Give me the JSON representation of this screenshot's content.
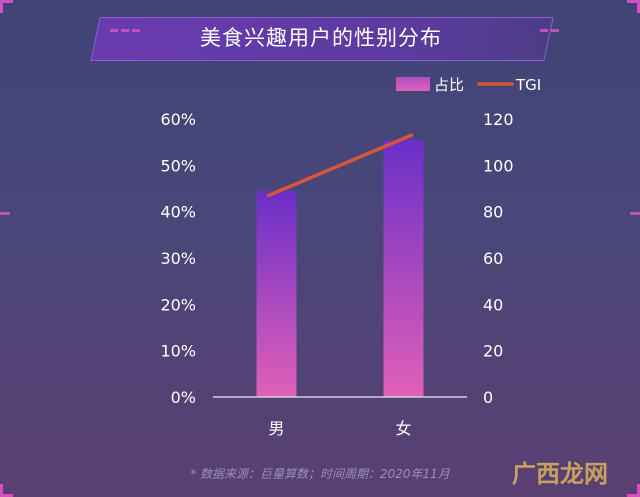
{
  "title": "美食兴趣用户的性别分布",
  "source": "* 数据来源：巨量算数；时间周期：2020年11月",
  "watermark": "广西龙网",
  "chart_data": {
    "type": "bar",
    "categories": [
      "男",
      "女"
    ],
    "series": [
      {
        "name": "占比",
        "type": "bar",
        "axis": "left",
        "values": [
          44.5,
          55.5
        ]
      },
      {
        "name": "TGI",
        "type": "line",
        "axis": "right",
        "values": [
          87,
          113
        ]
      }
    ],
    "left_axis": {
      "ylim": [
        0,
        60
      ],
      "ticks": [
        "0%",
        "10%",
        "20%",
        "30%",
        "40%",
        "50%",
        "60%"
      ]
    },
    "right_axis": {
      "ylim": [
        0,
        120
      ],
      "ticks": [
        "0",
        "20",
        "40",
        "60",
        "80",
        "100",
        "120"
      ]
    },
    "legend_position": "top-right",
    "grid": false
  },
  "colors": {
    "bar_top": "#6a2fc8",
    "bar_bottom": "#e060b8",
    "line": "#d8553a",
    "text": "#ffffff"
  }
}
